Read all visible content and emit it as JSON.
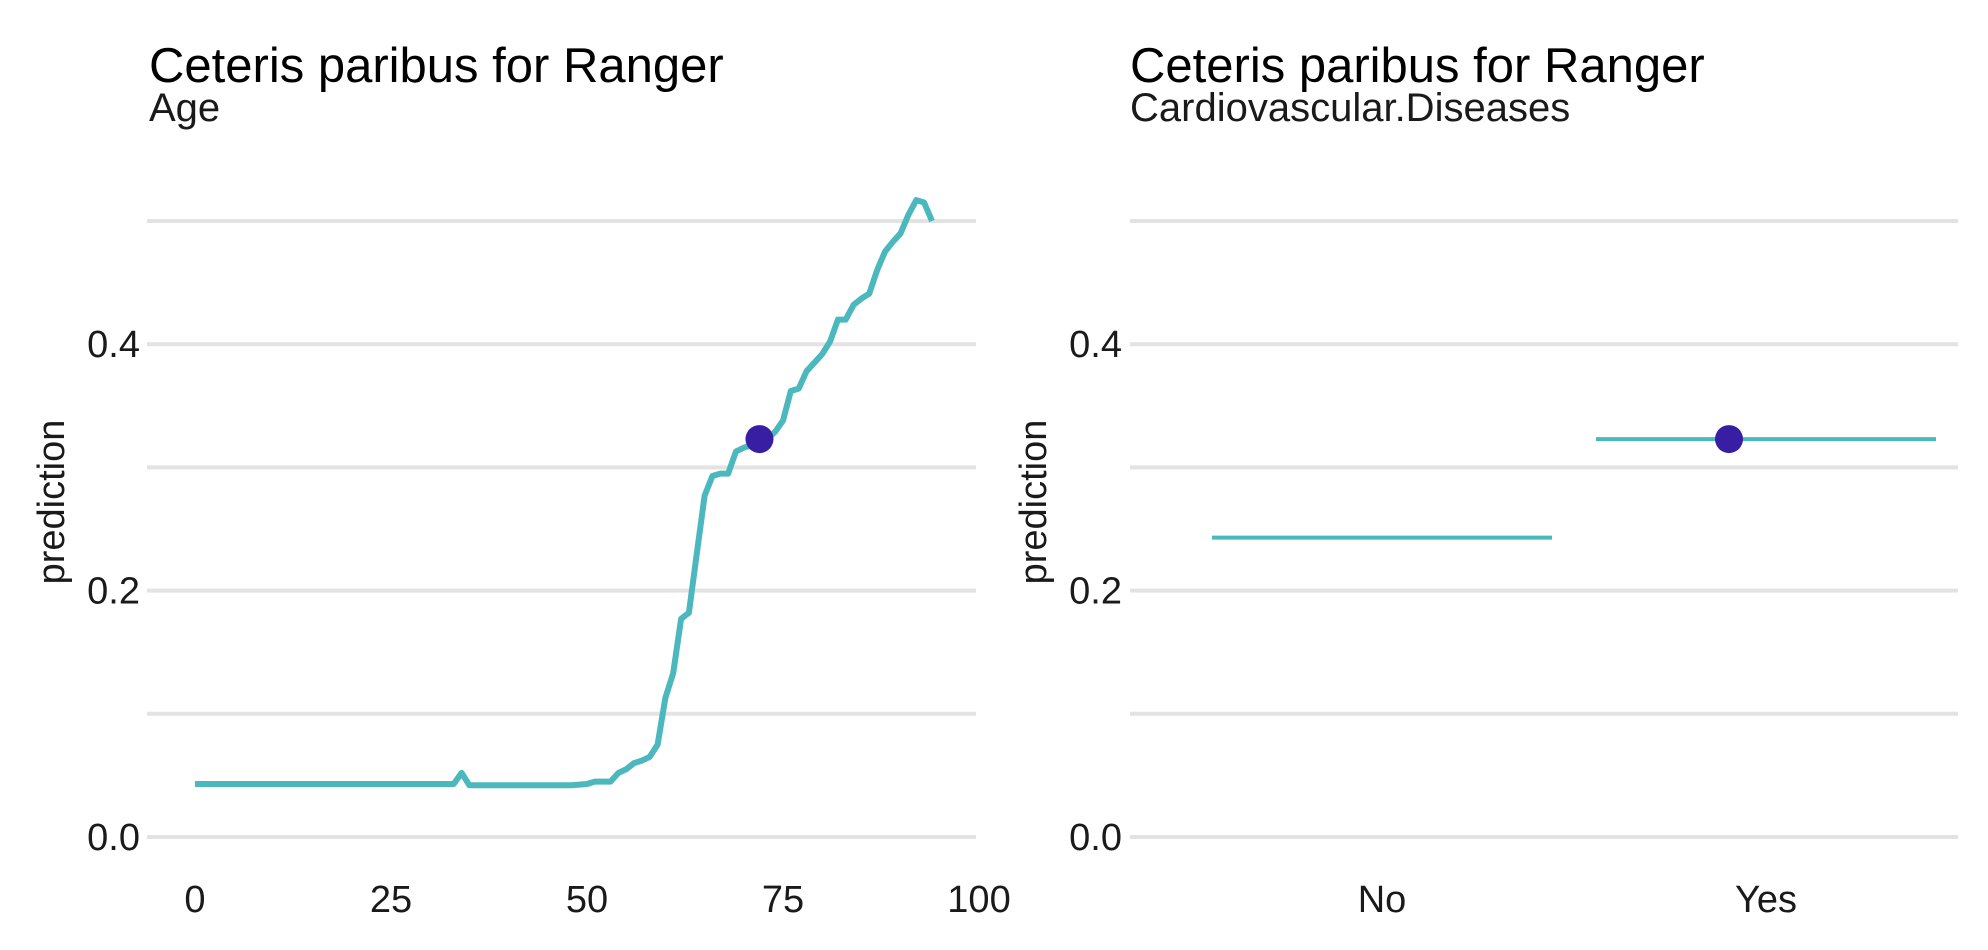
{
  "chart_data": [
    {
      "type": "line",
      "title": "Ceteris paribus for Ranger",
      "subtitle": "Age",
      "xlabel": "",
      "ylabel": "prediction",
      "xlim": [
        0,
        100
      ],
      "ylim": [
        0,
        0.5
      ],
      "x_ticks": [
        0,
        25,
        50,
        75,
        100
      ],
      "x_tick_labels": [
        "0",
        "25",
        "50",
        "75",
        "100"
      ],
      "y_ticks": [
        0.0,
        0.2,
        0.4
      ],
      "y_tick_labels": [
        "0.0",
        "0.2",
        "0.4"
      ],
      "y_minor_grid": [
        0.1,
        0.3,
        0.5
      ],
      "grid": true,
      "line_color": "#4bb8be",
      "point_color": "#371ea3",
      "series": [
        {
          "x": [
            0,
            33,
            34,
            35,
            48,
            50,
            51,
            53,
            54,
            55,
            56,
            57,
            58,
            59,
            60,
            61,
            62,
            63,
            64,
            65,
            66,
            67,
            68,
            69,
            70,
            71,
            72,
            73,
            74,
            75,
            76,
            77,
            78,
            79,
            80,
            81,
            82,
            83,
            84,
            85,
            86,
            87,
            88,
            89,
            90,
            91,
            92,
            93,
            94
          ],
          "y": [
            0.043,
            0.043,
            0.052,
            0.042,
            0.042,
            0.043,
            0.045,
            0.045,
            0.052,
            0.055,
            0.06,
            0.062,
            0.065,
            0.075,
            0.113,
            0.133,
            0.177,
            0.182,
            0.23,
            0.277,
            0.293,
            0.295,
            0.295,
            0.313,
            0.316,
            0.318,
            0.322,
            0.323,
            0.329,
            0.338,
            0.362,
            0.364,
            0.378,
            0.385,
            0.392,
            0.402,
            0.42,
            0.42,
            0.432,
            0.437,
            0.441,
            0.46,
            0.475,
            0.483,
            0.49,
            0.505,
            0.517,
            0.515,
            0.5
          ]
        }
      ],
      "observation": {
        "x": 72,
        "y": 0.323
      }
    },
    {
      "type": "line",
      "title": "Ceteris paribus for Ranger",
      "subtitle": "Cardiovascular.Diseases",
      "xlabel": "",
      "ylabel": "prediction",
      "categories": [
        "No",
        "Yes"
      ],
      "ylim": [
        0,
        0.5
      ],
      "y_ticks": [
        0.0,
        0.2,
        0.4
      ],
      "y_tick_labels": [
        "0.0",
        "0.2",
        "0.4"
      ],
      "y_minor_grid": [
        0.1,
        0.3,
        0.5
      ],
      "grid": true,
      "line_color": "#4bb8be",
      "point_color": "#371ea3",
      "values": [
        0.243,
        0.323
      ],
      "observation": {
        "category": "Yes",
        "y": 0.323
      }
    }
  ]
}
